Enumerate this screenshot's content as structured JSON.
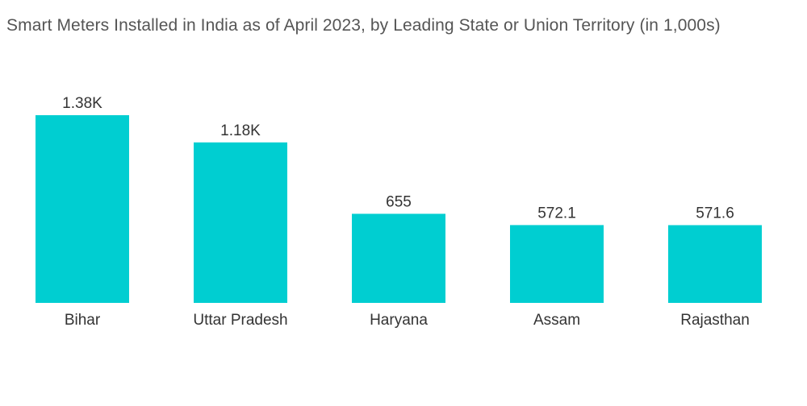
{
  "chart_data": {
    "type": "bar",
    "title": "Smart Meters Installed in India as of April 2023, by Leading State or Union Territory (in 1,000s)",
    "xlabel": "",
    "ylabel": "",
    "categories": [
      "Bihar",
      "Uttar Pradesh",
      "Haryana",
      "Assam",
      "Rajasthan"
    ],
    "values": [
      1380,
      1180,
      655,
      572.1,
      571.6
    ],
    "value_labels": [
      "1.38K",
      "1.18K",
      "655",
      "572.1",
      "571.6"
    ],
    "ylim": [
      0,
      1380
    ],
    "grid": false,
    "legend": "none",
    "bar_color": "#00CED1"
  }
}
